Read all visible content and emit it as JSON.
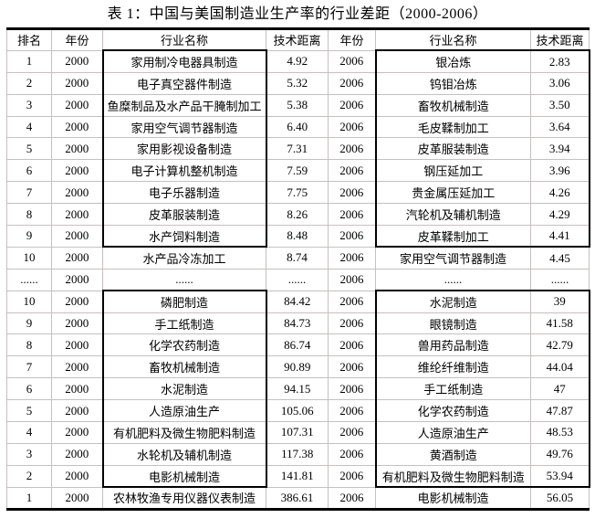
{
  "title": "表 1：中国与美国制造业生产率的行业差距（2000-2006）",
  "table": {
    "headers": [
      "排名",
      "年份",
      "行业名称",
      "技术距离",
      "年份",
      "行业名称",
      "技术距离"
    ],
    "rows": [
      [
        "1",
        "2000",
        "家用制冷电器具制造",
        "4.92",
        "2006",
        "银冶炼",
        "2.83"
      ],
      [
        "2",
        "2000",
        "电子真空器件制造",
        "5.32",
        "2006",
        "钨钼冶炼",
        "3.06"
      ],
      [
        "3",
        "2000",
        "鱼糜制品及水产品干腌制加工",
        "5.38",
        "2006",
        "畜牧机械制造",
        "3.50"
      ],
      [
        "4",
        "2000",
        "家用空气调节器制造",
        "6.40",
        "2006",
        "毛皮鞣制加工",
        "3.64"
      ],
      [
        "5",
        "2000",
        "家用影视设备制造",
        "7.31",
        "2006",
        "皮革服装制造",
        "3.94"
      ],
      [
        "6",
        "2000",
        "电子计算机整机制造",
        "7.59",
        "2006",
        "钢压延加工",
        "3.96"
      ],
      [
        "7",
        "2000",
        "电子乐器制造",
        "7.75",
        "2006",
        "贵金属压延加工",
        "4.26"
      ],
      [
        "8",
        "2000",
        "皮革服装制造",
        "8.26",
        "2006",
        "汽轮机及辅机制造",
        "4.29"
      ],
      [
        "9",
        "2000",
        "水产饲料制造",
        "8.48",
        "2006",
        "皮革鞣制加工",
        "4.41"
      ],
      [
        "10",
        "2000",
        "水产品冷冻加工",
        "8.74",
        "2006",
        "家用空气调节器制造",
        "4.45"
      ],
      [
        "......",
        "2000",
        "......",
        "......",
        "2006",
        "......",
        "......"
      ],
      [
        "10",
        "2000",
        "磷肥制造",
        "84.42",
        "2006",
        "水泥制造",
        "39"
      ],
      [
        "9",
        "2000",
        "手工纸制造",
        "84.73",
        "2006",
        "眼镜制造",
        "41.58"
      ],
      [
        "8",
        "2000",
        "化学农药制造",
        "86.74",
        "2006",
        "兽用药品制造",
        "42.79"
      ],
      [
        "7",
        "2000",
        "畜牧机械制造",
        "90.89",
        "2006",
        "维纶纤维制造",
        "44.04"
      ],
      [
        "6",
        "2000",
        "水泥制造",
        "94.15",
        "2006",
        "手工纸制造",
        "47"
      ],
      [
        "5",
        "2000",
        "人造原油生产",
        "105.06",
        "2006",
        "化学农药制造",
        "47.87"
      ],
      [
        "4",
        "2000",
        "有机肥料及微生物肥料制造",
        "107.31",
        "2006",
        "人造原油生产",
        "48.53"
      ],
      [
        "3",
        "2000",
        "水轮机及辅机制造",
        "117.38",
        "2006",
        "黄酒制造",
        "49.76"
      ],
      [
        "2",
        "2000",
        "电影机械制造",
        "141.81",
        "2006",
        "有机肥料及微生物肥料制造",
        "53.94"
      ],
      [
        "1",
        "2000",
        "农林牧渔专用仪器仪表制造",
        "386.61",
        "2006",
        "电影机械制造",
        "56.05"
      ]
    ]
  }
}
